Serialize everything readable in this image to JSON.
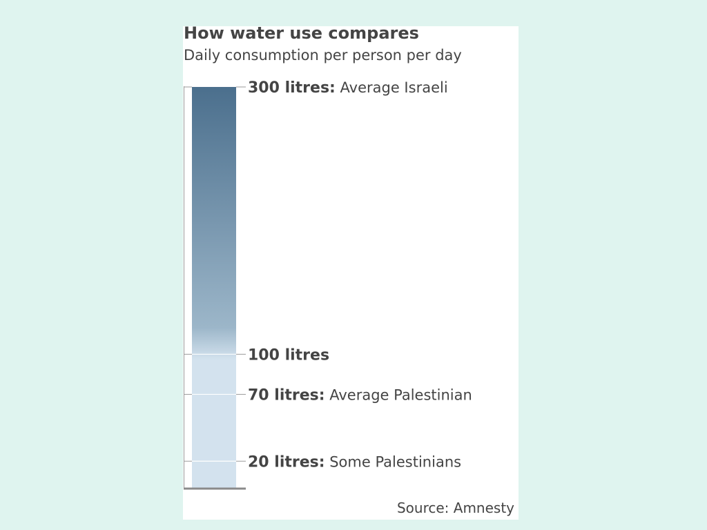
{
  "chart_data": {
    "type": "bar",
    "title": "How water use compares",
    "subtitle": "Daily consumption per person per day",
    "ylim": [
      0,
      300
    ],
    "series": [
      {
        "values": [
          300
        ]
      }
    ],
    "markers": [
      {
        "value": 300,
        "value_label": "300 litres:",
        "desc": "Average Israeli"
      },
      {
        "value": 100,
        "value_label": "100 litres",
        "desc": ""
      },
      {
        "value": 70,
        "value_label": "70 litres:",
        "desc": "Average Palestinian"
      },
      {
        "value": 20,
        "value_label": "20 litres:",
        "desc": "Some Palestinians"
      }
    ],
    "source": "Source: Amnesty",
    "colors": {
      "bar_top": "#4b6f8d",
      "bar_bottom": "#d3e2ee",
      "axis": "#999999",
      "background": "#dff4ef"
    }
  }
}
